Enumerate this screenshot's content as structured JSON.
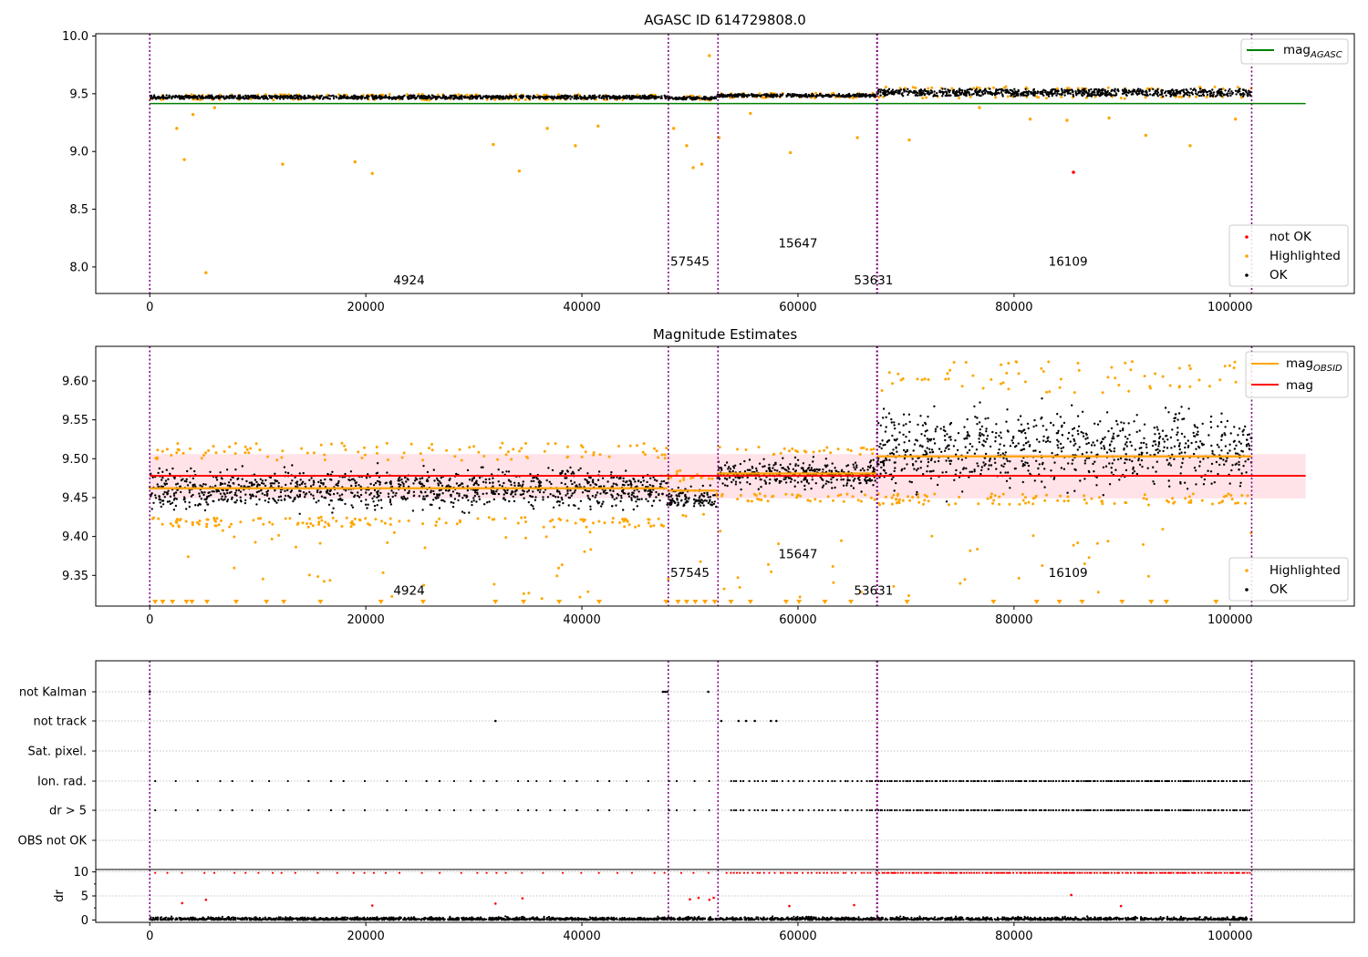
{
  "chart_data": [
    {
      "type": "scatter",
      "title": "AGASC ID 614729808.0",
      "xlim": [
        -5000,
        111500
      ],
      "ylim": [
        7.77,
        10.02
      ],
      "xticks": [
        0,
        20000,
        40000,
        60000,
        80000,
        100000
      ],
      "yticks": [
        8.0,
        8.5,
        9.0,
        9.5,
        10.0
      ],
      "xtick_labels": [
        "0",
        "20000",
        "40000",
        "60000",
        "80000",
        "100000"
      ],
      "ytick_labels": [
        "8.0",
        "8.5",
        "9.0",
        "9.5",
        "10.0"
      ],
      "legend_lines": [
        {
          "name": "mag",
          "sub": "AGASC",
          "color": "#008000"
        }
      ],
      "legend_points": [
        {
          "name": "not OK",
          "color": "#ff0000"
        },
        {
          "name": "Highlighted",
          "color": "#ffa500"
        },
        {
          "name": "OK",
          "color": "#000000"
        }
      ],
      "hlines": [
        {
          "y": 9.415,
          "x0": 0,
          "x1": 107000,
          "color": "#008000"
        }
      ],
      "segments": [
        {
          "x0": 0,
          "x1": 47900,
          "center": 9.47,
          "spread": 0.03
        },
        {
          "x0": 47900,
          "x1": 52500,
          "center": 9.462,
          "spread": 0.025
        },
        {
          "x0": 52500,
          "x1": 67300,
          "center": 9.485,
          "spread": 0.025
        },
        {
          "x0": 67300,
          "x1": 102000,
          "center": 9.51,
          "spread": 0.06
        }
      ],
      "outliers": [
        [
          2500,
          9.2
        ],
        [
          3200,
          8.93
        ],
        [
          4000,
          9.32
        ],
        [
          5200,
          7.95
        ],
        [
          6000,
          9.38
        ],
        [
          12300,
          8.89
        ],
        [
          19000,
          8.91
        ],
        [
          20600,
          8.81
        ],
        [
          31800,
          9.06
        ],
        [
          34200,
          8.83
        ],
        [
          36800,
          9.2
        ],
        [
          39400,
          9.05
        ],
        [
          41500,
          9.22
        ],
        [
          48500,
          9.2
        ],
        [
          49700,
          9.05
        ],
        [
          50300,
          8.86
        ],
        [
          51100,
          8.89
        ],
        [
          51800,
          9.83
        ],
        [
          52700,
          9.12
        ],
        [
          55600,
          9.33
        ],
        [
          59300,
          8.99
        ],
        [
          65500,
          9.12
        ],
        [
          70300,
          9.1
        ],
        [
          76800,
          9.38
        ],
        [
          81500,
          9.28
        ],
        [
          84900,
          9.27
        ],
        [
          88800,
          9.29
        ],
        [
          92200,
          9.14
        ],
        [
          96300,
          9.05
        ],
        [
          100500,
          9.28
        ]
      ],
      "not_ok_points": [
        [
          85500,
          8.82
        ]
      ],
      "obs_lines": [
        0,
        48000,
        52600,
        67300,
        67350,
        102000
      ],
      "obs_labels": [
        {
          "text": "4924",
          "x": 24000,
          "y": 7.85
        },
        {
          "text": "57545",
          "x": 50000,
          "y": 8.01
        },
        {
          "text": "15647",
          "x": 60000,
          "y": 8.17
        },
        {
          "text": "53631",
          "x": 67000,
          "y": 7.85
        },
        {
          "text": "16109",
          "x": 85000,
          "y": 8.01
        }
      ]
    },
    {
      "type": "scatter",
      "title": "Magnitude Estimates",
      "xlim": [
        -5000,
        111500
      ],
      "ylim": [
        9.3105,
        9.6445
      ],
      "xticks": [
        0,
        20000,
        40000,
        60000,
        80000,
        100000
      ],
      "yticks": [
        9.35,
        9.4,
        9.45,
        9.5,
        9.55,
        9.6
      ],
      "xtick_labels": [
        "0",
        "20000",
        "40000",
        "60000",
        "80000",
        "100000"
      ],
      "ytick_labels": [
        "9.35",
        "9.40",
        "9.45",
        "9.50",
        "9.55",
        "9.60"
      ],
      "legend_lines": [
        {
          "name": "mag",
          "sub": "OBSID",
          "color": "#ffa500"
        },
        {
          "name": "mag",
          "sub": "",
          "color": "#ff0000"
        }
      ],
      "legend_points": [
        {
          "name": "Highlighted",
          "color": "#ffa500"
        },
        {
          "name": "OK",
          "color": "#000000"
        }
      ],
      "band": {
        "y0": 9.449,
        "y1": 9.506,
        "x0": 0,
        "x1": 107000,
        "color": "#ffc0cb"
      },
      "hlines": [
        {
          "y": 9.478,
          "x0": 0,
          "x1": 107000,
          "color": "#ff0000"
        }
      ],
      "obsid_mags": [
        {
          "x0": 0,
          "x1": 47900,
          "y": 9.462
        },
        {
          "x0": 47900,
          "x1": 52500,
          "y": 9.459
        },
        {
          "x0": 52500,
          "x1": 67300,
          "y": 9.481
        },
        {
          "x0": 67300,
          "x1": 102000,
          "y": 9.503
        }
      ],
      "segments": [
        {
          "x0": 0,
          "x1": 47900,
          "black_lo": 9.425,
          "black_hi": 9.498,
          "orange_lo": 9.412,
          "orange_hi": 9.52
        },
        {
          "x0": 47900,
          "x1": 52500,
          "black_lo": 9.43,
          "black_hi": 9.47,
          "orange_lo": 9.42,
          "orange_hi": 9.485
        },
        {
          "x0": 52500,
          "x1": 67300,
          "black_lo": 9.455,
          "black_hi": 9.505,
          "orange_lo": 9.445,
          "orange_hi": 9.515
        },
        {
          "x0": 67300,
          "x1": 102000,
          "black_lo": 9.44,
          "black_hi": 9.585,
          "orange_lo": 9.455,
          "orange_hi": 9.625
        }
      ],
      "low_markers_x": [
        500,
        1200,
        2100,
        3400,
        3900,
        5300,
        8000,
        10800,
        12400,
        15800,
        21400,
        25300,
        32000,
        34600,
        37900,
        41600,
        47800,
        48900,
        49700,
        50500,
        51400,
        52300,
        53800,
        55600,
        58900,
        60100,
        62500,
        64900,
        70100,
        78100,
        82100,
        84200,
        86300,
        90000,
        92700,
        94100,
        98700
      ],
      "obs_lines": [
        0,
        48000,
        52600,
        67300,
        67350,
        102000
      ],
      "obs_labels": [
        {
          "text": "4924",
          "x": 24000,
          "y": 9.325
        },
        {
          "text": "57545",
          "x": 50000,
          "y": 9.348
        },
        {
          "text": "15647",
          "x": 60000,
          "y": 9.372
        },
        {
          "text": "53631",
          "x": 67000,
          "y": 9.325
        },
        {
          "text": "16109",
          "x": 85000,
          "y": 9.348
        }
      ]
    },
    {
      "type": "scatter",
      "title": "",
      "xlim": [
        -5000,
        111500
      ],
      "categories": [
        "not Kalman",
        "not track",
        "Sat. pixel.",
        "Ion. rad.",
        "dr > 5",
        "OBS not OK"
      ],
      "flag_points": {
        "not Kalman": [
          0,
          47500,
          47700,
          47900,
          51700
        ],
        "not track": [
          32000,
          52900,
          54500,
          55200,
          56000,
          57500,
          58000
        ]
      },
      "obs_lines": [
        0,
        48000,
        52600,
        67300,
        67350,
        102000
      ]
    },
    {
      "type": "scatter",
      "title": "",
      "ylabel": "dr",
      "xlim": [
        -5000,
        111500
      ],
      "ylim": [
        -0.5,
        10.5
      ],
      "xticks": [
        0,
        20000,
        40000,
        60000,
        80000,
        100000
      ],
      "yticks": [
        0,
        5,
        10
      ],
      "xtick_labels": [
        "0",
        "20000",
        "40000",
        "60000",
        "80000",
        "100000"
      ],
      "ytick_labels": [
        "0",
        "5",
        "10"
      ],
      "red_outliers": [
        [
          3000,
          3.5
        ],
        [
          5200,
          4.2
        ],
        [
          20600,
          3.0
        ],
        [
          32000,
          3.4
        ],
        [
          34500,
          4.5
        ],
        [
          50000,
          4.3
        ],
        [
          50800,
          4.6
        ],
        [
          51800,
          4.2
        ],
        [
          52200,
          4.6
        ],
        [
          59200,
          2.9
        ],
        [
          65200,
          3.1
        ],
        [
          85300,
          5.2
        ],
        [
          89900,
          2.9
        ]
      ],
      "obs_lines": [
        0,
        48000,
        52600,
        67300,
        67350,
        102000
      ]
    }
  ]
}
